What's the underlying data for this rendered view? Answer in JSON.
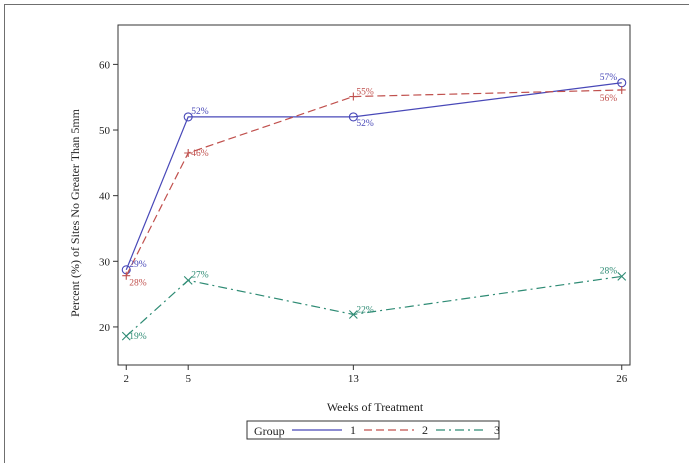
{
  "chart_data": {
    "type": "line",
    "xlabel": "Weeks of Treatment",
    "ylabel": "Percent (%) of Sites No Greater Than 5mm",
    "x_ticks": [
      2,
      5,
      13,
      26
    ],
    "y_ticks": [
      20,
      30,
      40,
      50,
      60
    ],
    "xlim": [
      1.6,
      26.4
    ],
    "ylim": [
      14.2,
      66
    ],
    "grid": false,
    "legend": {
      "position": "bottom-center",
      "title": "Group"
    },
    "x": [
      2,
      5,
      13,
      26
    ],
    "series": [
      {
        "name": "1",
        "color": "#4848b8",
        "marker": "circle",
        "dash": "solid",
        "values": [
          28.7,
          52,
          52,
          57.2
        ],
        "labels": [
          "29%",
          "52%",
          "52%",
          "57%"
        ]
      },
      {
        "name": "2",
        "color": "#c0504d",
        "marker": "plus",
        "dash": "long-dash",
        "values": [
          27.8,
          46.5,
          55.1,
          56.1
        ],
        "labels": [
          "28%",
          "46%",
          "55%",
          "56%"
        ]
      },
      {
        "name": "3",
        "color": "#2e8b74",
        "marker": "x",
        "dash": "dash-dot",
        "values": [
          18.6,
          27.1,
          21.9,
          27.7
        ],
        "labels": [
          "19%",
          "27%",
          "22%",
          "28%"
        ]
      }
    ]
  }
}
